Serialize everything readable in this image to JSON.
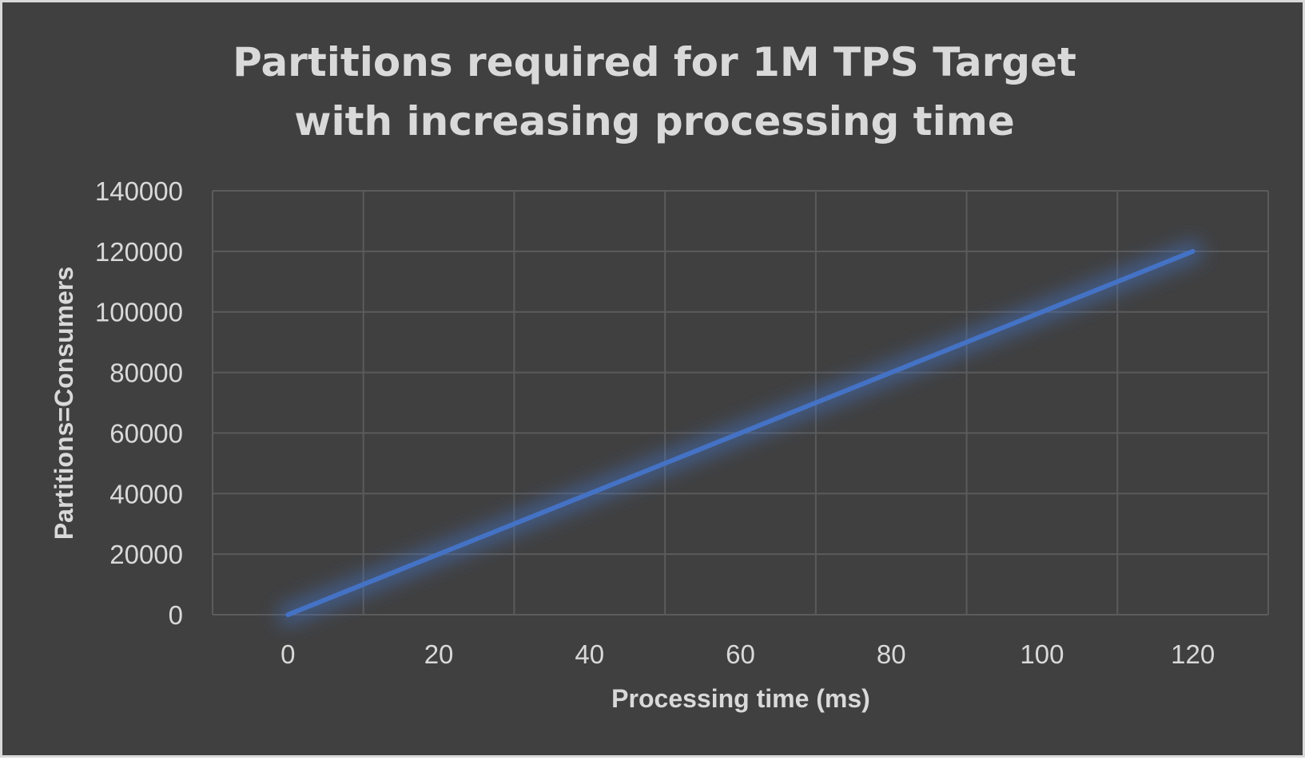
{
  "chart_data": {
    "type": "line",
    "title_lines": [
      "Partitions required for 1M TPS Target",
      "with increasing processing time"
    ],
    "xlabel": "Processing time (ms)",
    "ylabel": "Partitions=Consumers",
    "x": [
      0,
      10,
      20,
      30,
      40,
      50,
      60,
      70,
      80,
      90,
      100,
      110,
      120
    ],
    "series": [
      {
        "values": [
          0,
          10000,
          20000,
          30000,
          40000,
          50000,
          60000,
          70000,
          80000,
          90000,
          100000,
          110000,
          120000
        ]
      }
    ],
    "xlim": [
      -10,
      130
    ],
    "ylim": [
      0,
      140000
    ],
    "x_ticks": [
      0,
      20,
      40,
      60,
      80,
      100,
      120
    ],
    "y_ticks": [
      0,
      20000,
      40000,
      60000,
      80000,
      100000,
      120000,
      140000
    ],
    "grid": true,
    "legend": "none",
    "colors": {
      "background": "#404040",
      "border": "#d9d9d9",
      "grid": "#5b5b5b",
      "text": "#d9d9d9",
      "series": "#4472c4"
    }
  }
}
